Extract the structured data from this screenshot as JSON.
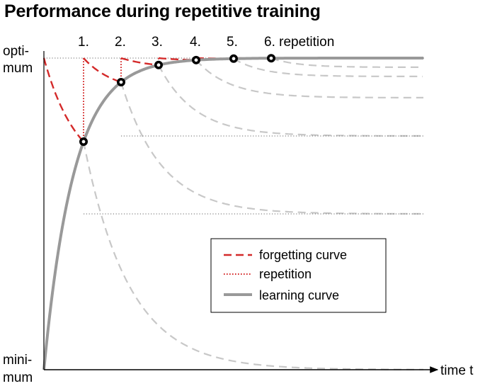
{
  "title": "Performance during repetitive training",
  "y_top_label": [
    "opti-",
    "mum"
  ],
  "y_bottom_label": [
    "mini-",
    "mum"
  ],
  "x_label": "time t",
  "repetition_labels": [
    "1.",
    "2.",
    "3.",
    "4.",
    "5.",
    "6. repetition"
  ],
  "legend": {
    "forgetting": "forgetting curve",
    "repetition": "repetition",
    "learning": "learning curve"
  },
  "colors": {
    "forgetting": "#d42a2a",
    "repetition": "#d42a2a",
    "learning": "#999999",
    "faded": "#c8c8c8"
  },
  "chart_data": {
    "type": "line",
    "title": "Performance during repetitive training",
    "xlabel": "time t",
    "ylabel": "",
    "y_range": [
      "minimum",
      "optimum"
    ],
    "repetitions": [
      1,
      2,
      3,
      4,
      5,
      6
    ],
    "series": [
      {
        "name": "learning curve",
        "style": "solid gray"
      },
      {
        "name": "forgetting curve",
        "style": "dashed red"
      },
      {
        "name": "repetition",
        "style": "dotted red"
      }
    ]
  }
}
